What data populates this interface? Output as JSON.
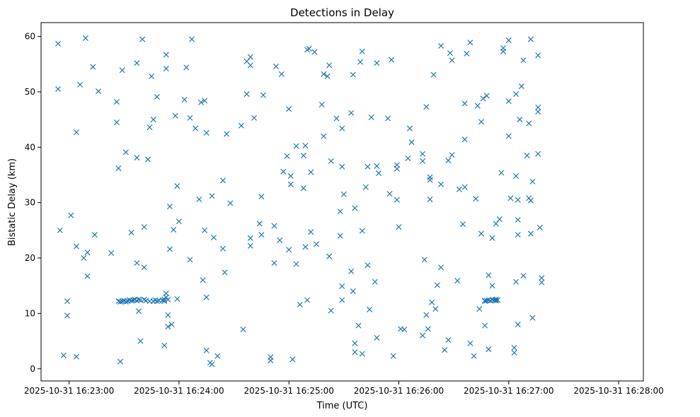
{
  "chart_data": {
    "type": "scatter",
    "title": "Detections in Delay",
    "xlabel": "Time (UTC)",
    "ylabel": "Bistatic Delay (km)",
    "x_unit": "seconds after 2025-10-31 16:23:00",
    "xlim": [
      -15.3,
      313.5
    ],
    "ylim": [
      -2.2,
      62.5
    ],
    "x_ticks": [
      0,
      60,
      120,
      180,
      240,
      300
    ],
    "x_tick_labels": [
      "2025-10-31 16:23:00",
      "2025-10-31 16:24:00",
      "2025-10-31 16:25:00",
      "2025-10-31 16:26:00",
      "2025-10-31 16:27:00",
      "2025-10-31 16:28:00"
    ],
    "y_ticks": [
      0,
      10,
      20,
      30,
      40,
      50,
      60
    ],
    "y_tick_labels": [
      "0",
      "10",
      "20",
      "30",
      "40",
      "50",
      "60"
    ],
    "grid": false,
    "marker": "x",
    "color": "#1f77b4",
    "points": [
      [
        -6,
        58.7
      ],
      [
        -6,
        50.5
      ],
      [
        -5,
        25.0
      ],
      [
        -3,
        2.4
      ],
      [
        -1,
        12.2
      ],
      [
        -1,
        9.6
      ],
      [
        1,
        27.7
      ],
      [
        4,
        22.1
      ],
      [
        4,
        42.7
      ],
      [
        4,
        2.2
      ],
      [
        6,
        51.3
      ],
      [
        8,
        20.0
      ],
      [
        9,
        59.7
      ],
      [
        10,
        21.0
      ],
      [
        10,
        16.7
      ],
      [
        13,
        54.5
      ],
      [
        14,
        24.2
      ],
      [
        16,
        50.1
      ],
      [
        23,
        20.9
      ],
      [
        26,
        48.2
      ],
      [
        26,
        44.5
      ],
      [
        27,
        36.2
      ],
      [
        28,
        1.3
      ],
      [
        29,
        53.9
      ],
      [
        31,
        39.1
      ],
      [
        34,
        24.6
      ],
      [
        37,
        55.2
      ],
      [
        37,
        38.1
      ],
      [
        37,
        19.1
      ],
      [
        38,
        10.4
      ],
      [
        39,
        5.0
      ],
      [
        40,
        59.5
      ],
      [
        41,
        25.6
      ],
      [
        41,
        18.3
      ],
      [
        43,
        37.8
      ],
      [
        44,
        43.6
      ],
      [
        45,
        52.8
      ],
      [
        46,
        45.0
      ],
      [
        48,
        49.1
      ],
      [
        52,
        4.2
      ],
      [
        53,
        56.7
      ],
      [
        53,
        54.2
      ],
      [
        54,
        9.7
      ],
      [
        54,
        7.6
      ],
      [
        55,
        29.3
      ],
      [
        55,
        21.6
      ],
      [
        56,
        8.0
      ],
      [
        57,
        25.1
      ],
      [
        58,
        45.7
      ],
      [
        59,
        33.0
      ],
      [
        59,
        12.6
      ],
      [
        60,
        26.6
      ],
      [
        63,
        48.6
      ],
      [
        64,
        54.4
      ],
      [
        66,
        45.3
      ],
      [
        66,
        19.7
      ],
      [
        67,
        59.5
      ],
      [
        69,
        43.4
      ],
      [
        71,
        30.6
      ],
      [
        72,
        48.1
      ],
      [
        73,
        16.0
      ],
      [
        74,
        48.4
      ],
      [
        74,
        25.0
      ],
      [
        75,
        42.6
      ],
      [
        75,
        12.9
      ],
      [
        75,
        3.3
      ],
      [
        77,
        1.1
      ],
      [
        78,
        0.8
      ],
      [
        78,
        31.2
      ],
      [
        79,
        23.7
      ],
      [
        81,
        2.3
      ],
      [
        84,
        34.0
      ],
      [
        84,
        21.7
      ],
      [
        85,
        17.4
      ],
      [
        86,
        42.4
      ],
      [
        88,
        29.9
      ],
      [
        94,
        43.9
      ],
      [
        95,
        7.1
      ],
      [
        97,
        49.6
      ],
      [
        97,
        55.5
      ],
      [
        99,
        23.6
      ],
      [
        99,
        22.2
      ],
      [
        99,
        56.3
      ],
      [
        99,
        54.8
      ],
      [
        101,
        45.3
      ],
      [
        104,
        26.2
      ],
      [
        105,
        31.1
      ],
      [
        105,
        24.2
      ],
      [
        106,
        49.4
      ],
      [
        110,
        1.5
      ],
      [
        110,
        2.1
      ],
      [
        112,
        25.8
      ],
      [
        112,
        19.1
      ],
      [
        113,
        54.6
      ],
      [
        115,
        23.2
      ],
      [
        116,
        53.2
      ],
      [
        117,
        35.6
      ],
      [
        119,
        38.4
      ],
      [
        120,
        21.5
      ],
      [
        120,
        46.9
      ],
      [
        121,
        34.8
      ],
      [
        121,
        33.3
      ],
      [
        122,
        1.7
      ],
      [
        124,
        18.9
      ],
      [
        124,
        40.2
      ],
      [
        126,
        11.6
      ],
      [
        128,
        32.6
      ],
      [
        128,
        38.5
      ],
      [
        129,
        40.3
      ],
      [
        129,
        22.0
      ],
      [
        130,
        12.4
      ],
      [
        130,
        57.6
      ],
      [
        131,
        57.8
      ],
      [
        132,
        24.7
      ],
      [
        132,
        35.5
      ],
      [
        134,
        57.2
      ],
      [
        135,
        22.5
      ],
      [
        138,
        47.7
      ],
      [
        139,
        42.0
      ],
      [
        139,
        53.2
      ],
      [
        141,
        52.8
      ],
      [
        142,
        20.3
      ],
      [
        142,
        54.8
      ],
      [
        143,
        37.5
      ],
      [
        143,
        10.5
      ],
      [
        146,
        45.2
      ],
      [
        148,
        24.0
      ],
      [
        148,
        28.4
      ],
      [
        149,
        43.4
      ],
      [
        149,
        36.5
      ],
      [
        149,
        14.9
      ],
      [
        149,
        12.4
      ],
      [
        150,
        31.5
      ],
      [
        154,
        46.2
      ],
      [
        154,
        17.6
      ],
      [
        155,
        53.1
      ],
      [
        155,
        14.0
      ],
      [
        156,
        29.0
      ],
      [
        156,
        4.6
      ],
      [
        156,
        3.0
      ],
      [
        158,
        7.8
      ],
      [
        159,
        55.4
      ],
      [
        160,
        57.3
      ],
      [
        160,
        24.9
      ],
      [
        160,
        2.7
      ],
      [
        162,
        32.8
      ],
      [
        163,
        36.5
      ],
      [
        163,
        18.7
      ],
      [
        164,
        10.7
      ],
      [
        165,
        45.4
      ],
      [
        167,
        15.7
      ],
      [
        168,
        55.2
      ],
      [
        168,
        36.6
      ],
      [
        168,
        5.6
      ],
      [
        169,
        35.3
      ],
      [
        174,
        45.2
      ],
      [
        175,
        31.6
      ],
      [
        176,
        55.8
      ],
      [
        177,
        2.3
      ],
      [
        179,
        36.1
      ],
      [
        179,
        36.8
      ],
      [
        179,
        30.5
      ],
      [
        180,
        25.6
      ],
      [
        181,
        7.2
      ],
      [
        183,
        7.1
      ],
      [
        185,
        38.0
      ],
      [
        186,
        43.4
      ],
      [
        187,
        40.9
      ],
      [
        193,
        37.5
      ],
      [
        193,
        6.0
      ],
      [
        193,
        38.8
      ],
      [
        194,
        19.7
      ],
      [
        195,
        47.3
      ],
      [
        195,
        9.7
      ],
      [
        196,
        7.2
      ],
      [
        197,
        34.6
      ],
      [
        197,
        34.1
      ],
      [
        197,
        30.6
      ],
      [
        198,
        12.0
      ],
      [
        199,
        53.1
      ],
      [
        200,
        10.8
      ],
      [
        201,
        15.1
      ],
      [
        203,
        58.3
      ],
      [
        203,
        33.3
      ],
      [
        203,
        18.3
      ],
      [
        205,
        3.4
      ],
      [
        207,
        37.6
      ],
      [
        207,
        5.2
      ],
      [
        208,
        57.0
      ],
      [
        209,
        38.6
      ],
      [
        209,
        55.7
      ],
      [
        212,
        15.9
      ],
      [
        213,
        32.4
      ],
      [
        215,
        26.1
      ],
      [
        216,
        47.9
      ],
      [
        216,
        41.4
      ],
      [
        216,
        32.8
      ],
      [
        217,
        56.9
      ],
      [
        219,
        58.9
      ],
      [
        219,
        4.6
      ],
      [
        221,
        2.3
      ],
      [
        222,
        30.7
      ],
      [
        223,
        47.5
      ],
      [
        224,
        10.8
      ],
      [
        225,
        44.6
      ],
      [
        225,
        24.4
      ],
      [
        226,
        48.8
      ],
      [
        227,
        7.8
      ],
      [
        227,
        12.3
      ],
      [
        228,
        49.3
      ],
      [
        229,
        16.9
      ],
      [
        229,
        3.5
      ],
      [
        231,
        23.6
      ],
      [
        231,
        15.0
      ],
      [
        233,
        26.2
      ],
      [
        235,
        27.0
      ],
      [
        236,
        35.4
      ],
      [
        237,
        57.9
      ],
      [
        237,
        57.3
      ],
      [
        240,
        59.3
      ],
      [
        240,
        42.0
      ],
      [
        240,
        48.3
      ],
      [
        241,
        30.8
      ],
      [
        243,
        2.9
      ],
      [
        243,
        3.8
      ],
      [
        244,
        49.6
      ],
      [
        244,
        34.8
      ],
      [
        244,
        15.7
      ],
      [
        245,
        30.5
      ],
      [
        245,
        26.9
      ],
      [
        245,
        24.2
      ],
      [
        245,
        8.0
      ],
      [
        246,
        45.0
      ],
      [
        247,
        51.0
      ],
      [
        248,
        16.8
      ],
      [
        248,
        55.7
      ],
      [
        250,
        38.5
      ],
      [
        251,
        44.3
      ],
      [
        251,
        30.8
      ],
      [
        252,
        30.4
      ],
      [
        252,
        59.5
      ],
      [
        252,
        24.4
      ],
      [
        253,
        33.8
      ],
      [
        253,
        9.2
      ],
      [
        256,
        56.6
      ],
      [
        256,
        47.2
      ],
      [
        256,
        46.4
      ],
      [
        256,
        38.8
      ],
      [
        257,
        25.5
      ],
      [
        258,
        16.4
      ],
      [
        258,
        15.6
      ],
      [
        27,
        12.2
      ],
      [
        28,
        12.1
      ],
      [
        29,
        12.2
      ],
      [
        30,
        12.3
      ],
      [
        31,
        12.1
      ],
      [
        32,
        12.2
      ],
      [
        33,
        12.4
      ],
      [
        34,
        12.3
      ],
      [
        35,
        12.4
      ],
      [
        36,
        12.5
      ],
      [
        37,
        12.3
      ],
      [
        38,
        12.5
      ],
      [
        39,
        12.4
      ],
      [
        41,
        12.5
      ],
      [
        42,
        12.3
      ],
      [
        44,
        12.2
      ],
      [
        46,
        12.2
      ],
      [
        47,
        12.4
      ],
      [
        48,
        12.2
      ],
      [
        49,
        12.3
      ],
      [
        51,
        12.4
      ],
      [
        52,
        12.5
      ],
      [
        52,
        12.2
      ],
      [
        53,
        12.9
      ],
      [
        53,
        13.6
      ],
      [
        54,
        12.5
      ],
      [
        227,
        12.2
      ],
      [
        228,
        12.3
      ],
      [
        229,
        12.4
      ],
      [
        230,
        12.3
      ],
      [
        231,
        12.5
      ],
      [
        232,
        12.4
      ],
      [
        233,
        12.5
      ],
      [
        233,
        12.3
      ],
      [
        234,
        12.4
      ]
    ]
  }
}
